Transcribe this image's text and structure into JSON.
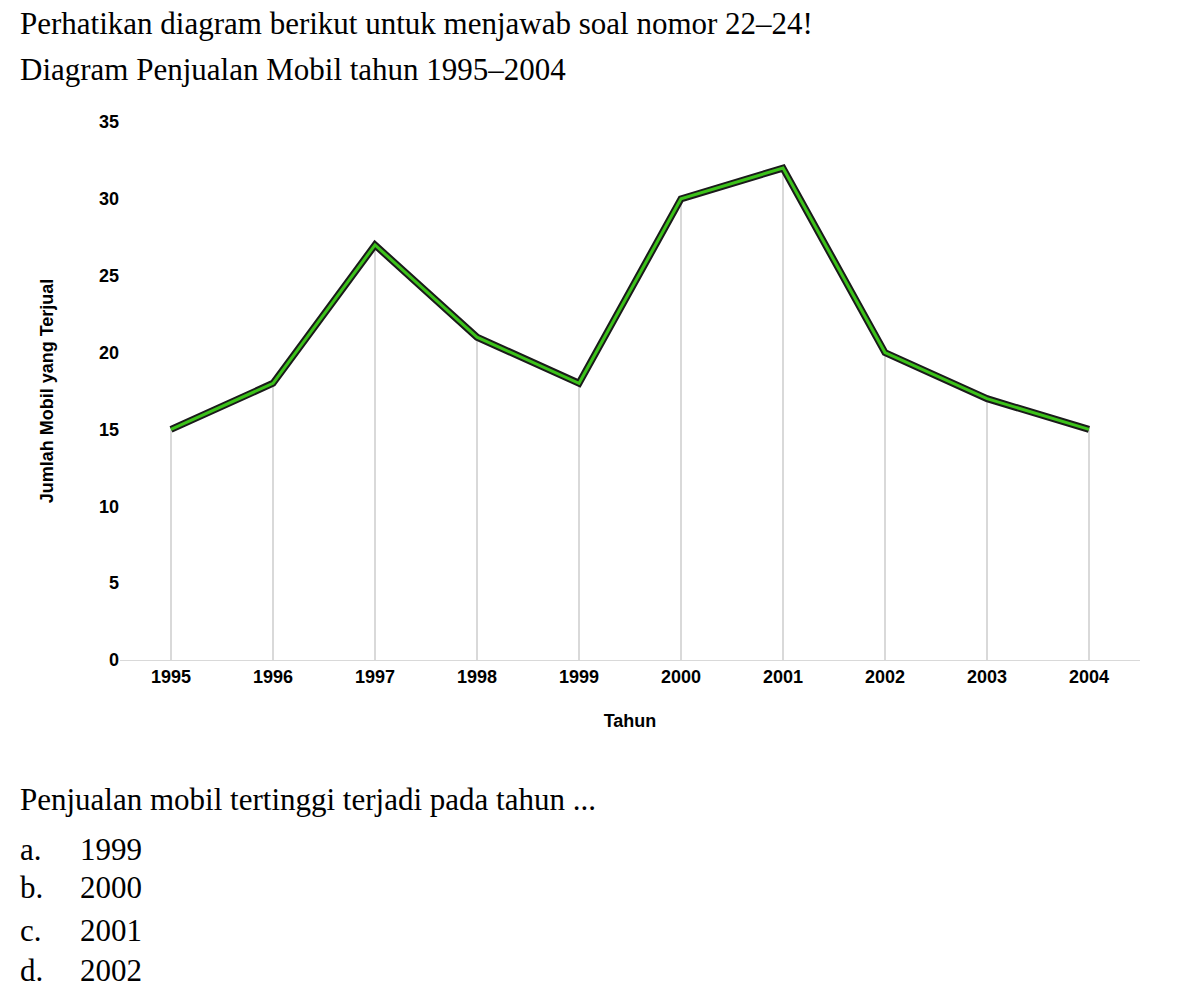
{
  "header": "Perhatikan diagram berikut untuk menjawab soal nomor 22–24!",
  "chart_data": {
    "type": "line",
    "title": "Diagram Penjualan Mobil tahun 1995–2004",
    "x_label": "Tahun",
    "y_label": "Jumlah Mobil yang Terjual",
    "categories": [
      "1995",
      "1996",
      "1997",
      "1998",
      "1999",
      "2000",
      "2001",
      "2002",
      "2003",
      "2004"
    ],
    "values": [
      15,
      18,
      27,
      21,
      18,
      30,
      32,
      20,
      17,
      15
    ],
    "color": "#3cc21a",
    "ylim": [
      0,
      35
    ],
    "yticks": [
      0,
      5,
      10,
      15,
      20,
      25,
      30,
      35
    ],
    "grid": true
  },
  "question": {
    "text": "Penjualan mobil tertinggi terjadi pada tahun ...",
    "options": [
      {
        "label": "a.",
        "text": "1999"
      },
      {
        "label": "b.",
        "text": "2000"
      },
      {
        "label": "c.",
        "text": "2001"
      },
      {
        "label": "d.",
        "text": "2002"
      }
    ]
  }
}
